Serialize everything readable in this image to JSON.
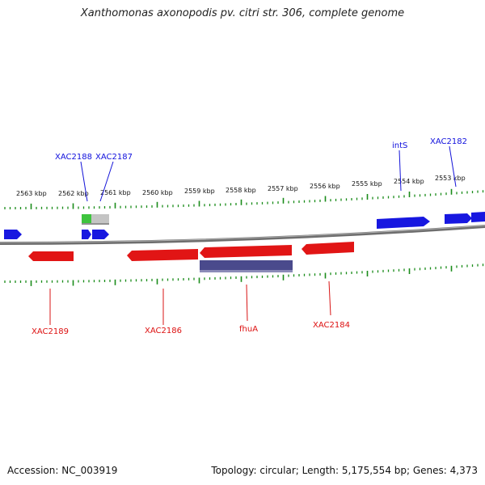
{
  "title": "Xanthomonas axonopodis pv. citri str. 306, complete genome",
  "kbp_labels": [
    "2563 kbp",
    "2562 kbp",
    "2561 kbp",
    "2560 kbp",
    "2559 kbp",
    "2558 kbp",
    "2557 kbp",
    "2556 kbp",
    "2555 kbp",
    "2554 kbp",
    "2553 kbp"
  ],
  "forward_genes": [
    "XAC2188",
    "XAC2187",
    "intS",
    "XAC2182"
  ],
  "reverse_genes": [
    "XAC2189",
    "XAC2186",
    "fhuA",
    "XAC2184"
  ],
  "footer": {
    "accession": "Accession: NC_003919",
    "summary": "Topology: circular; Length: 5,175,554 bp; Genes: 4,373"
  },
  "colors": {
    "forward_strand": "#1a1ae6",
    "reverse_strand": "#e61a1a",
    "backbone": "#808080",
    "ticks": "#1a8c1a",
    "rna_feature": "#40c040",
    "other_feature": "#c0c0c0",
    "reverse_secondary": "#444488"
  }
}
